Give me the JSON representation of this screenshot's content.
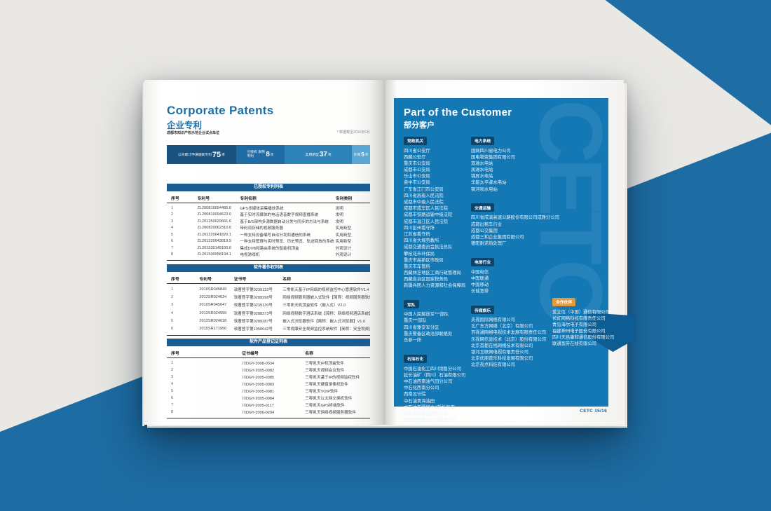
{
  "colors": {
    "brand_blue": "#1d6ca3",
    "panel_blue": "#1478b5",
    "badge_navy": "#0b456e",
    "badge_orange": "#e29a3c",
    "table_header_blue": "#1b5d93"
  },
  "left_page": {
    "title_en": "Corporate Patents",
    "title_zh": "企业专利",
    "note_left": "成都市知识产权示范企业试点单位",
    "note_right": "* 数据截至2016年6月",
    "stats": [
      {
        "label": "公司累计申请国家专利",
        "value": "75",
        "unit": "项"
      },
      {
        "label": "已授权 发明专利",
        "value": "8",
        "unit": "项"
      },
      {
        "label": "实用新型",
        "value": "37",
        "unit": "项"
      },
      {
        "label": "外观",
        "value": "5",
        "unit": "项"
      }
    ],
    "tables": [
      {
        "title": "已授权专利列表",
        "columns": [
          "序号",
          "专利号",
          "专利名称",
          "专利类别"
        ],
        "rows": [
          [
            "1",
            "ZL200810094485.6",
            "GPS多媒体采集播放系统",
            "发明"
          ],
          [
            "2",
            "ZL200810094623.0",
            "基于实时流媒体的电话语音数字视频直播系统",
            "发明"
          ],
          [
            "3",
            "ZL201250029661.6",
            "基于B/S架构多源数据自动分发与同步的方法与系统",
            "发明"
          ],
          [
            "4",
            "ZL200820062310.6",
            "带码流存储的视频服务器",
            "实用新型"
          ],
          [
            "5",
            "ZL201220041820.1",
            "一种支持设备编号自动分发和通信的系统",
            "实用新型"
          ],
          [
            "6",
            "ZL201220043819.9",
            "一种支持管理与实时预览、历史预览、轨迹回放的系统",
            "实用新型"
          ],
          [
            "7",
            "ZL201530145100.6",
            "集成DVB和路由系统的智能机顶盒",
            "外观设计"
          ],
          [
            "8",
            "ZL201530058194.1",
            "电视游戏机",
            "外观设计"
          ]
        ]
      },
      {
        "title": "软件著作权列表",
        "columns": [
          "序号",
          "专利号",
          "证书号",
          "名称"
        ],
        "rows": [
          [
            "1",
            "2010SR045849",
            "软著登字第0239122号",
            "三零凯天基于IP网络的视频监控中心管理软件V1.4"
          ],
          [
            "2",
            "2012SR024634",
            "软著登字第0288268号",
            "网络视频服务器嵌入式软件【简称：视频服务器软件】V1.0"
          ],
          [
            "3",
            "2010SR045647",
            "软著登字第0239120号",
            "三零凯天机顶盒软件（嵌入式）V2.0"
          ],
          [
            "4",
            "2012SR024599",
            "软著登字第0288273号",
            "网络视频数字酒店系统【简称：网络视频酒店系统】V1.0"
          ],
          [
            "5",
            "2012SR024618",
            "软著登字第0288287号",
            "嵌入式浏览器软件【简称：嵌入式浏览器】V1.0"
          ],
          [
            "6",
            "2015SR171956",
            "软著登字第1050042号",
            "三零视康安全视频监控系统软件【简称：安全视频监控软件】V2.0"
          ]
        ]
      },
      {
        "title": "软件产品登记证列表",
        "columns": [
          "序号",
          "证书编号",
          "名称"
        ],
        "rows": [
          [
            "1",
            "川DGY-2008-0334",
            "三零凯天IP机顶盒软件"
          ],
          [
            "2",
            "川DGY-2005-0082",
            "三零凯天视频会议软件"
          ],
          [
            "3",
            "川DGY-2005-0085",
            "三零凯天基于IP的视频监控软件"
          ],
          [
            "4",
            "川DGY-2005-0083",
            "三零凯天硬盘录像机软件"
          ],
          [
            "5",
            "川DGY-2005-0081",
            "三零凯天VOIP软件"
          ],
          [
            "6",
            "川DGY-2005-0084",
            "三零凯天以太网交换机软件"
          ],
          [
            "7",
            "川DGY-2005-0117",
            "三零凯天GPS终端软件"
          ],
          [
            "8",
            "川DGY-2006-0204",
            "三零凯天网络视频服务器软件"
          ]
        ]
      }
    ]
  },
  "right_page": {
    "title_en": "Part of the Customer",
    "title_zh": "部分客户",
    "watermark": "CETC",
    "columns": [
      [
        {
          "label": "党政机关",
          "accent": false,
          "items": [
            "四川省公安厅",
            "西藏公安厅",
            "重庆市公安局",
            "成都市公安局",
            "乐山市公安局",
            "资中市公安局",
            "广东省江门市公安局",
            "四川省高级人民法院",
            "成都市中级人民法院",
            "成都市成华区人民法院",
            "成都市铁路运输中级法院",
            "成都市温江区人民法院",
            "四川彭州看守所",
            "江苏省看守所",
            "四川省大堰劳教所",
            "成都交通委员会执法总队",
            "攀枝花市环保局",
            "重庆市高新区市政局",
            "重庆市车管所",
            "西藏林芝地区工商行政管理局",
            "西藏自治区国家税务局",
            "新疆兵团人力资源和社会保障局"
          ]
        },
        {
          "label": "军队",
          "accent": false,
          "items": [
            "中国人民解放军***部队",
            "重庆***部队",
            "四川省雅安军分区",
            "重庆警备区政治部联络处",
            "总参一所"
          ]
        },
        {
          "label": "石油石化",
          "accent": false,
          "items": [
            "中国石油化工四川销售分公司",
            "延长油矿（四川）石油有限公司",
            "中石油西南油气田分公司",
            "中石化西南分公司",
            "西南设计院",
            "中石油青海油田",
            "中石油新疆塔中4凝析气田",
            "中石油吉林油田分公司",
            "西南油气田分公司重庆气矿"
          ]
        }
      ],
      [
        {
          "label": "电力系统",
          "accent": false,
          "items": [
            "国网四川省电力公司",
            "国电物资集团有限公司",
            "双滩水电站",
            "凤滩水电站",
            "锦屏水电站",
            "华能太平驿水电站",
            "铜河坝水电站"
          ]
        },
        {
          "label": "交通运输",
          "accent": false,
          "items": [
            "四川省成渝高速公路股份有限公司成雅分公司",
            "成都出租车行业",
            "成都公交集团",
            "成都三和企业集团有限公司",
            "德阳耐诺热处理厂"
          ]
        },
        {
          "label": "电信行业",
          "accent": false,
          "items": [
            "中国电信",
            "中国联通",
            "中国移动",
            "长城宽带"
          ]
        },
        {
          "label": "传媒娱乐",
          "accent": false,
          "items": [
            "央视国际网络有限公司",
            "北广东方网络（北京）有限公司",
            "百视通网络电视技术发展有限责任公司",
            "乐视网信息技术（北京）股份有限公司",
            "北京首都在线网络技术有限公司",
            "银河互联网电视有限责任公司",
            "北京优朋普乐科技发展有限公司",
            "北京视点科技有限公司"
          ]
        }
      ],
      [
        {
          "label": "合作伙伴",
          "accent": true,
          "items": [
            "爱立信（中国）通信有限公司",
            "长虹网络科技有限责任公司",
            "青岛海尔电子有限公司",
            "福建神州电子股份有限公司",
            "四川天邑康和通信股份有限公司",
            "联通宽带在线有限公司"
          ]
        }
      ]
    ],
    "footer": "CETC 15/16"
  }
}
